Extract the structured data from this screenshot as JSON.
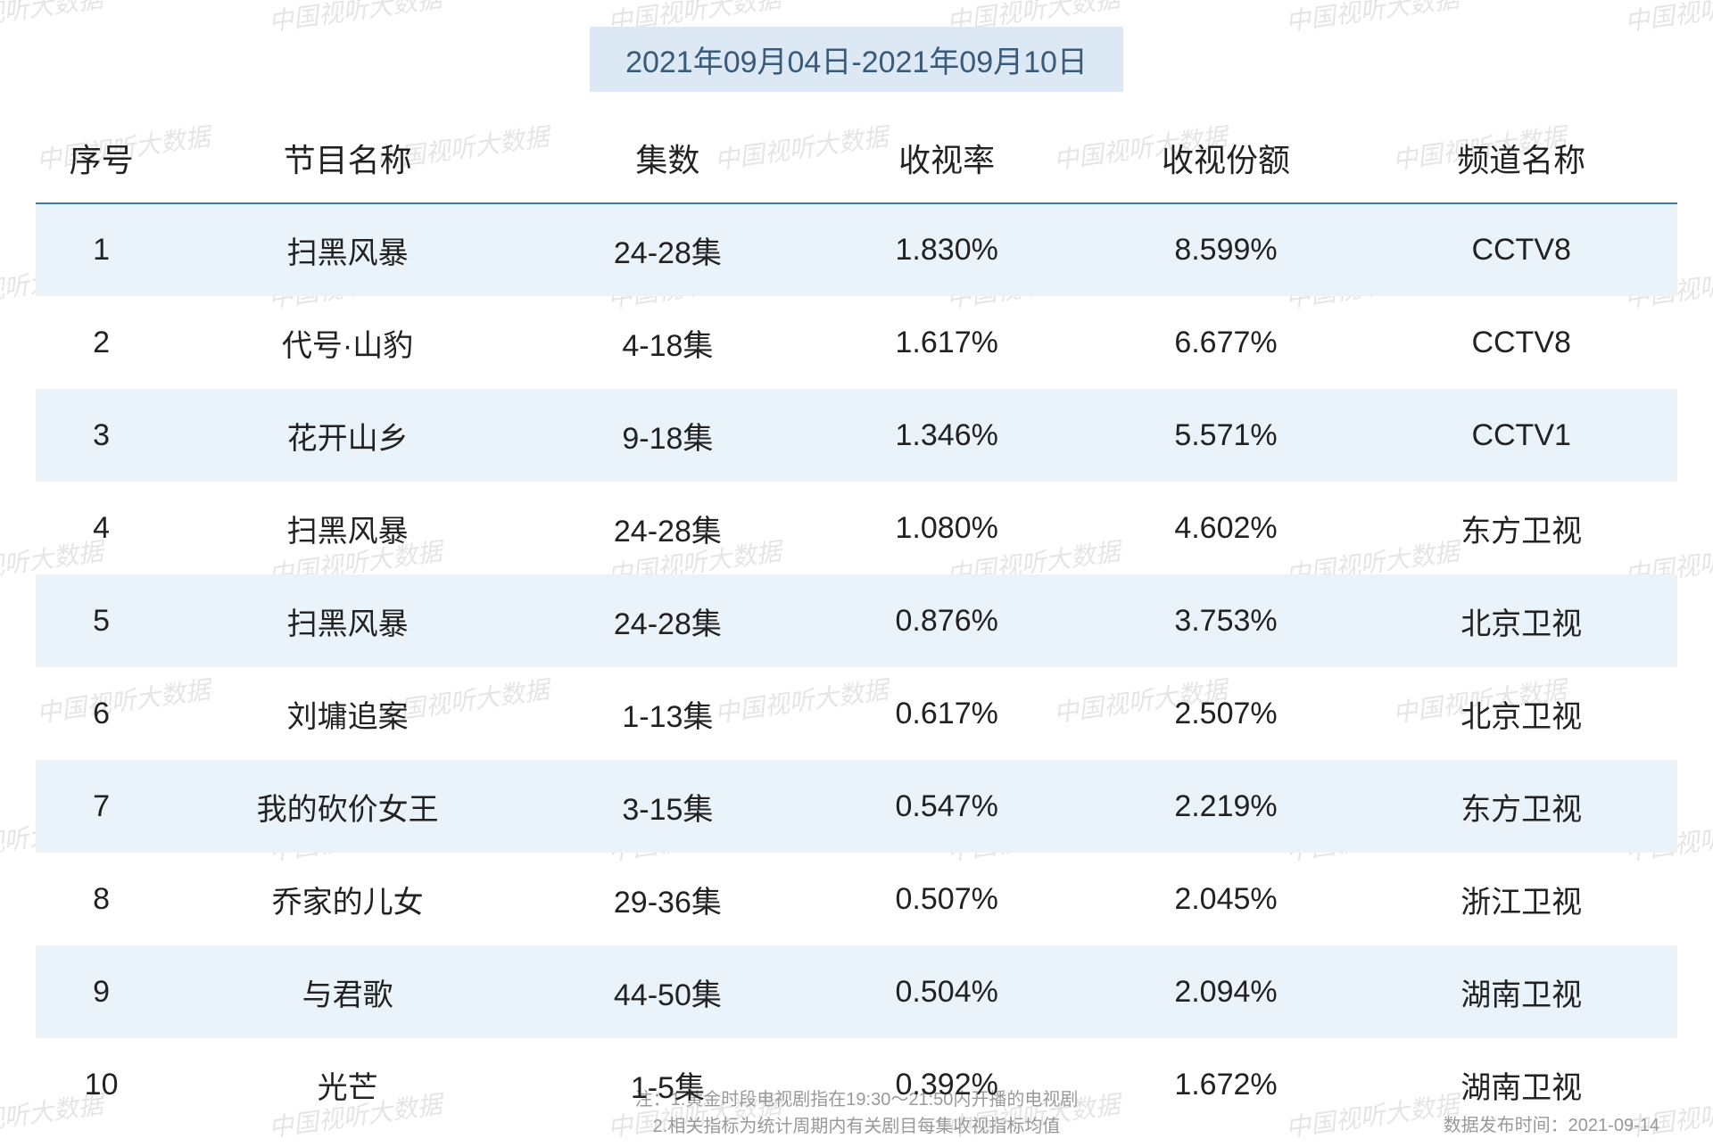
{
  "date_range": "2021年09月04日-2021年09月10日",
  "watermark_text": "中国视听大数据",
  "colors": {
    "banner_bg": "#dce8f4",
    "banner_text": "#3a5a7a",
    "header_border": "#3a7ab8",
    "row_alt_bg": "#eaf2fa",
    "text": "#222222",
    "footer_text": "#999999",
    "watermark": "rgba(150,150,150,0.25)"
  },
  "table": {
    "columns": [
      "序号",
      "节目名称",
      "集数",
      "收视率",
      "收视份额",
      "频道名称"
    ],
    "rows": [
      [
        "1",
        "扫黑风暴",
        "24-28集",
        "1.830%",
        "8.599%",
        "CCTV8"
      ],
      [
        "2",
        "代号·山豹",
        "4-18集",
        "1.617%",
        "6.677%",
        "CCTV8"
      ],
      [
        "3",
        "花开山乡",
        "9-18集",
        "1.346%",
        "5.571%",
        "CCTV1"
      ],
      [
        "4",
        "扫黑风暴",
        "24-28集",
        "1.080%",
        "4.602%",
        "东方卫视"
      ],
      [
        "5",
        "扫黑风暴",
        "24-28集",
        "0.876%",
        "3.753%",
        "北京卫视"
      ],
      [
        "6",
        "刘墉追案",
        "1-13集",
        "0.617%",
        "2.507%",
        "北京卫视"
      ],
      [
        "7",
        "我的砍价女王",
        "3-15集",
        "0.547%",
        "2.219%",
        "东方卫视"
      ],
      [
        "8",
        "乔家的儿女",
        "29-36集",
        "0.507%",
        "2.045%",
        "浙江卫视"
      ],
      [
        "9",
        "与君歌",
        "44-50集",
        "0.504%",
        "2.094%",
        "湖南卫视"
      ],
      [
        "10",
        "光芒",
        "1-5集",
        "0.392%",
        "1.672%",
        "湖南卫视"
      ]
    ]
  },
  "footer": {
    "note1": "注：1.黄金时段电视剧指在19:30～21:50内开播的电视剧",
    "note2": "2.相关指标为统计周期内有关剧目每集收视指标均值",
    "publish": "数据发布时间：2021-09-14"
  }
}
